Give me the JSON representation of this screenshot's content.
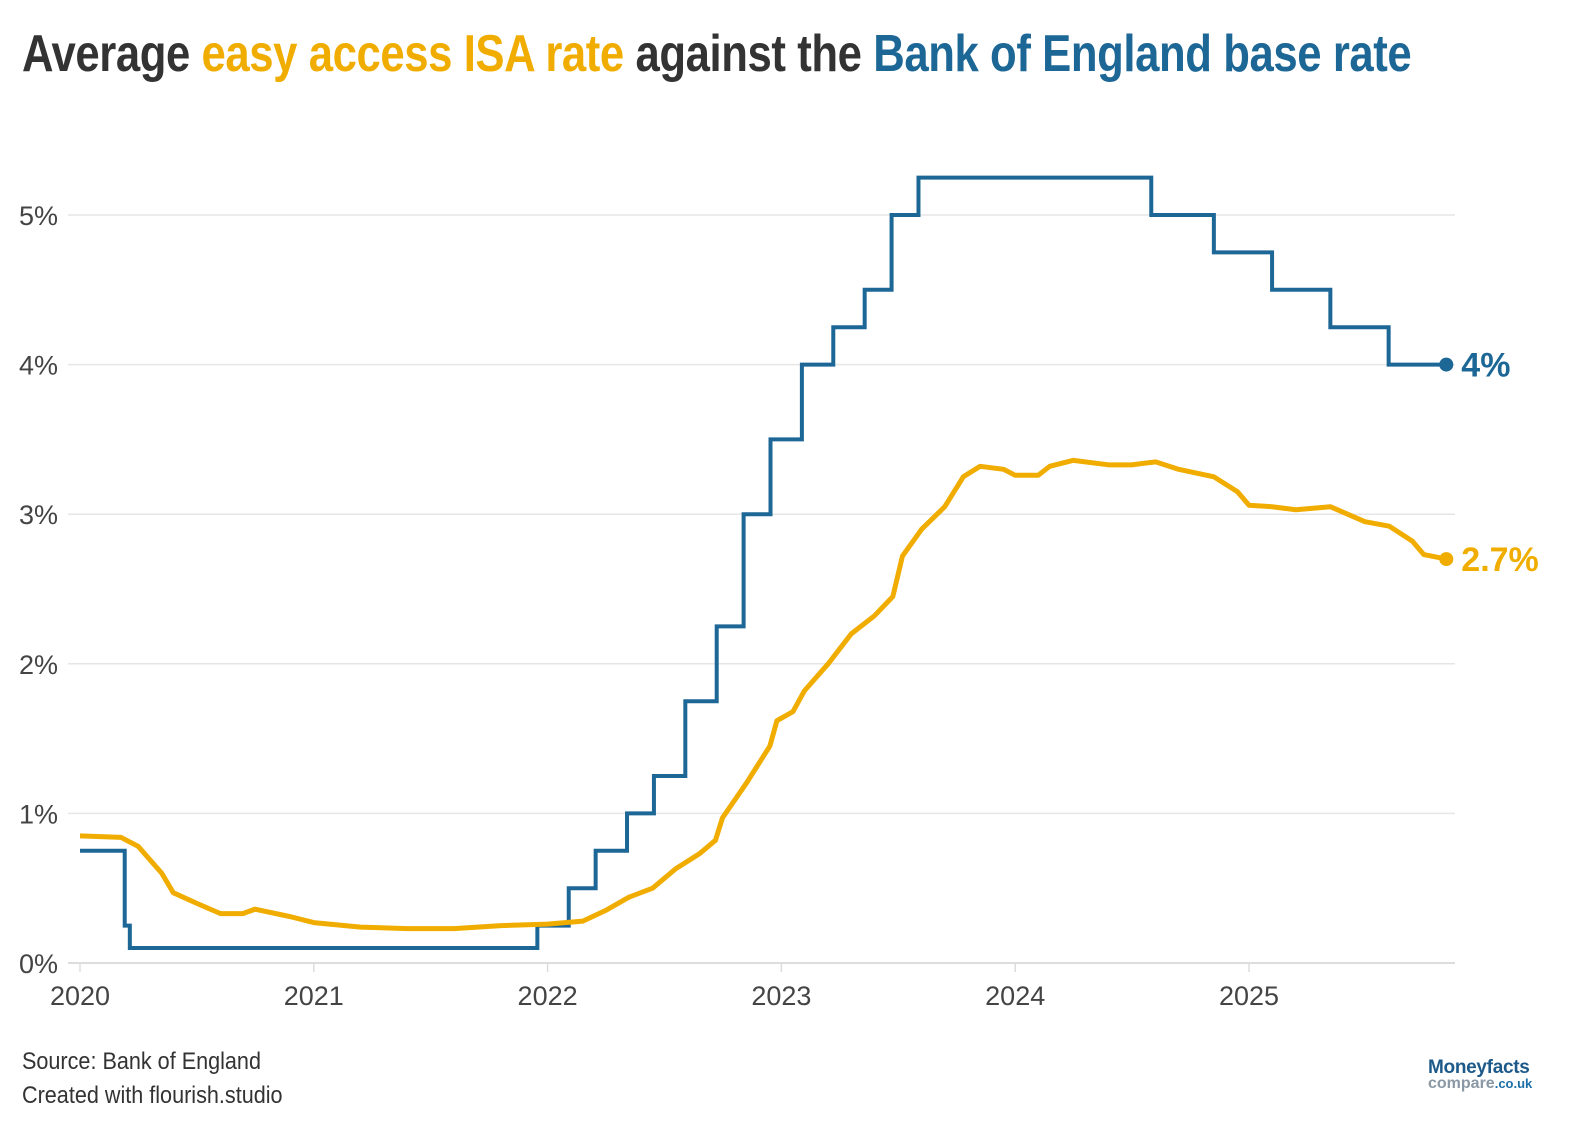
{
  "title": {
    "part1": "Average ",
    "part2": "easy access ISA rate",
    "part3": " against the ",
    "part4": "Bank of England base rate"
  },
  "footer": {
    "source": "Source: Bank of England",
    "credit": "Created with flourish.studio"
  },
  "logo": {
    "line1": "Moneyfacts",
    "line2": "compare",
    "line3": ".co.uk"
  },
  "colors": {
    "isa": "#F0AD00",
    "base": "#1D6796",
    "text": "#333333",
    "grid": "#E6E6E6"
  },
  "chart_data": {
    "type": "line",
    "title": "Average easy access ISA rate against the Bank of England base rate",
    "xlabel": "",
    "ylabel": "",
    "xlim": [
      "2020-01-01",
      "2025-11-05"
    ],
    "ylim": [
      0,
      5.4
    ],
    "x_ticks": [
      "2020",
      "2021",
      "2022",
      "2023",
      "2024",
      "2025"
    ],
    "y_ticks": [
      {
        "value": 0,
        "label": "0%"
      },
      {
        "value": 1,
        "label": "1%"
      },
      {
        "value": 2,
        "label": "2%"
      },
      {
        "value": 3,
        "label": "3%"
      },
      {
        "value": 4,
        "label": "4%"
      },
      {
        "value": 5,
        "label": "5%"
      }
    ],
    "grid": true,
    "series": [
      {
        "name": "Bank of England base rate",
        "key": "base",
        "step": true,
        "end_label": "4%",
        "points": [
          [
            "2020-01-01",
            0.75
          ],
          [
            "2020-03-11",
            0.25
          ],
          [
            "2020-03-19",
            0.1
          ],
          [
            "2021-12-16",
            0.25
          ],
          [
            "2022-02-03",
            0.5
          ],
          [
            "2022-03-17",
            0.75
          ],
          [
            "2022-05-05",
            1.0
          ],
          [
            "2022-06-16",
            1.25
          ],
          [
            "2022-08-04",
            1.75
          ],
          [
            "2022-09-22",
            2.25
          ],
          [
            "2022-11-03",
            3.0
          ],
          [
            "2022-12-15",
            3.5
          ],
          [
            "2023-02-02",
            4.0
          ],
          [
            "2023-03-23",
            4.25
          ],
          [
            "2023-05-11",
            4.5
          ],
          [
            "2023-06-22",
            5.0
          ],
          [
            "2023-08-03",
            5.25
          ],
          [
            "2024-08-01",
            5.0
          ],
          [
            "2024-11-07",
            4.75
          ],
          [
            "2025-02-06",
            4.5
          ],
          [
            "2025-05-08",
            4.25
          ],
          [
            "2025-08-07",
            4.0
          ],
          [
            "2025-11-05",
            4.0
          ]
        ]
      },
      {
        "name": "easy access ISA rate",
        "key": "isa",
        "step": false,
        "end_label": "2.7%",
        "points": [
          [
            "2020-01-01",
            0.85
          ],
          [
            "2020-03-05",
            0.84
          ],
          [
            "2020-04-01",
            0.78
          ],
          [
            "2020-05-08",
            0.6
          ],
          [
            "2020-05-26",
            0.47
          ],
          [
            "2020-07-01",
            0.4
          ],
          [
            "2020-08-08",
            0.33
          ],
          [
            "2020-09-12",
            0.33
          ],
          [
            "2020-10-01",
            0.36
          ],
          [
            "2020-11-25",
            0.31
          ],
          [
            "2021-01-01",
            0.27
          ],
          [
            "2021-03-15",
            0.24
          ],
          [
            "2021-05-26",
            0.23
          ],
          [
            "2021-08-08",
            0.23
          ],
          [
            "2021-10-20",
            0.25
          ],
          [
            "2022-01-01",
            0.26
          ],
          [
            "2022-02-25",
            0.28
          ],
          [
            "2022-04-01",
            0.35
          ],
          [
            "2022-05-08",
            0.44
          ],
          [
            "2022-06-14",
            0.5
          ],
          [
            "2022-07-20",
            0.63
          ],
          [
            "2022-08-26",
            0.73
          ],
          [
            "2022-09-20",
            0.82
          ],
          [
            "2022-10-01",
            0.97
          ],
          [
            "2022-11-07",
            1.2
          ],
          [
            "2022-12-14",
            1.45
          ],
          [
            "2022-12-25",
            1.62
          ],
          [
            "2023-01-19",
            1.68
          ],
          [
            "2023-02-06",
            1.82
          ],
          [
            "2023-03-15",
            2.0
          ],
          [
            "2023-04-20",
            2.2
          ],
          [
            "2023-05-26",
            2.32
          ],
          [
            "2023-06-24",
            2.45
          ],
          [
            "2023-07-09",
            2.72
          ],
          [
            "2023-08-08",
            2.9
          ],
          [
            "2023-09-13",
            3.05
          ],
          [
            "2023-10-12",
            3.25
          ],
          [
            "2023-11-07",
            3.32
          ],
          [
            "2023-12-14",
            3.3
          ],
          [
            "2024-01-01",
            3.26
          ],
          [
            "2024-02-06",
            3.26
          ],
          [
            "2024-02-24",
            3.32
          ],
          [
            "2024-04-01",
            3.36
          ],
          [
            "2024-05-26",
            3.33
          ],
          [
            "2024-07-01",
            3.33
          ],
          [
            "2024-08-08",
            3.35
          ],
          [
            "2024-09-13",
            3.3
          ],
          [
            "2024-11-07",
            3.25
          ],
          [
            "2024-12-14",
            3.15
          ],
          [
            "2025-01-01",
            3.06
          ],
          [
            "2025-02-06",
            3.05
          ],
          [
            "2025-03-15",
            3.03
          ],
          [
            "2025-05-08",
            3.05
          ],
          [
            "2025-07-01",
            2.95
          ],
          [
            "2025-08-08",
            2.92
          ],
          [
            "2025-09-13",
            2.82
          ],
          [
            "2025-10-01",
            2.73
          ],
          [
            "2025-11-05",
            2.7
          ]
        ]
      }
    ]
  }
}
